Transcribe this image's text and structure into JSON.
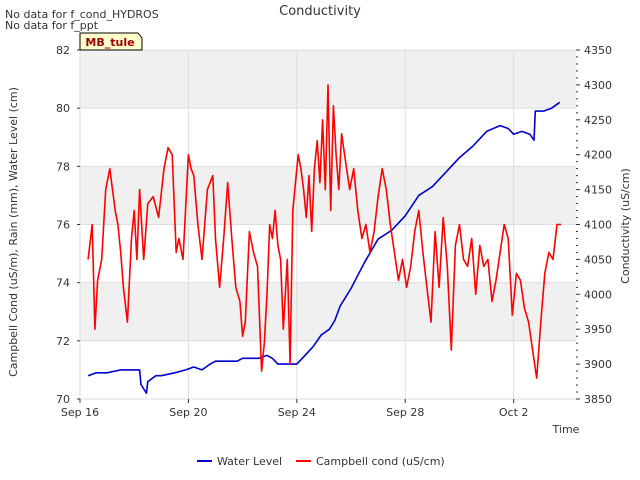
{
  "notes": [
    "No data for f_cond_HYDROS",
    "No data for f_ppt"
  ],
  "site_label": "MB_tule",
  "chart_data": {
    "type": "line",
    "title": "Conductivity",
    "xlabel": "Time",
    "ylabel_left": "Campbell Cond (uS/m), Rain (mm), Water Level (cm)",
    "ylabel_right": "Conductivity (uS/cm)",
    "xlim": [
      0,
      18.3
    ],
    "x_ticks": [
      {
        "x": 0,
        "label": "Sep 16"
      },
      {
        "x": 4,
        "label": "Sep 20"
      },
      {
        "x": 8,
        "label": "Sep 24"
      },
      {
        "x": 12,
        "label": "Sep 28"
      },
      {
        "x": 16,
        "label": "Oct 2"
      }
    ],
    "ylim_left": [
      70,
      82
    ],
    "y_ticks_left": [
      "70",
      "72",
      "74",
      "76",
      "78",
      "80",
      "82"
    ],
    "ylim_right": [
      3850,
      4350
    ],
    "y_ticks_right": [
      "3850",
      "3900",
      "3950",
      "4000",
      "4050",
      "4100",
      "4150",
      "4200",
      "4250",
      "4300",
      "4350"
    ],
    "grid": true,
    "legend": [
      "Water Level",
      "Campbell cond (uS/cm)"
    ],
    "colors": {
      "water_level": "#0000cc",
      "campbell_cond": "#ff0000",
      "band": "#f0f0f0",
      "grid": "#dddddd"
    },
    "series": [
      {
        "name": "Water Level",
        "axis": "left",
        "x": [
          0.3,
          0.6,
          1.0,
          1.5,
          2.0,
          2.2,
          2.25,
          2.45,
          2.5,
          2.8,
          3.0,
          3.5,
          3.9,
          4.2,
          4.5,
          4.8,
          5.0,
          5.5,
          5.8,
          6.0,
          6.3,
          6.6,
          6.9,
          7.1,
          7.3,
          7.5,
          7.8,
          8.0,
          8.3,
          8.6,
          8.9,
          9.2,
          9.4,
          9.6,
          10.0,
          10.5,
          11.0,
          11.5,
          12.0,
          12.5,
          13.0,
          13.5,
          14.0,
          14.5,
          15.0,
          15.5,
          15.8,
          16.0,
          16.3,
          16.6,
          16.75,
          16.8,
          17.1,
          17.4,
          17.7
        ],
        "y": [
          70.8,
          70.9,
          70.9,
          71.0,
          71.0,
          71.0,
          70.5,
          70.2,
          70.6,
          70.8,
          70.8,
          70.9,
          71.0,
          71.1,
          71.0,
          71.2,
          71.3,
          71.3,
          71.3,
          71.4,
          71.4,
          71.4,
          71.5,
          71.4,
          71.2,
          71.2,
          71.2,
          71.2,
          71.5,
          71.8,
          72.2,
          72.4,
          72.7,
          73.2,
          73.8,
          74.7,
          75.5,
          75.8,
          76.3,
          77.0,
          77.3,
          77.8,
          78.3,
          78.7,
          79.2,
          79.4,
          79.3,
          79.1,
          79.2,
          79.1,
          78.9,
          79.9,
          79.9,
          80.0,
          80.2
        ]
      },
      {
        "name": "Campbell cond (uS/cm)",
        "axis": "right",
        "x": [
          0.3,
          0.45,
          0.55,
          0.65,
          0.8,
          0.95,
          1.1,
          1.3,
          1.4,
          1.5,
          1.6,
          1.75,
          1.9,
          2.0,
          2.1,
          2.2,
          2.35,
          2.5,
          2.7,
          2.9,
          3.1,
          3.25,
          3.4,
          3.55,
          3.65,
          3.8,
          4.0,
          4.1,
          4.2,
          4.35,
          4.5,
          4.7,
          4.9,
          5.0,
          5.15,
          5.3,
          5.45,
          5.6,
          5.75,
          5.9,
          6.0,
          6.1,
          6.25,
          6.4,
          6.55,
          6.7,
          6.8,
          6.9,
          7.0,
          7.1,
          7.2,
          7.3,
          7.4,
          7.5,
          7.65,
          7.75,
          7.85,
          7.95,
          8.05,
          8.15,
          8.25,
          8.35,
          8.45,
          8.55,
          8.65,
          8.75,
          8.85,
          8.95,
          9.05,
          9.15,
          9.25,
          9.35,
          9.45,
          9.55,
          9.65,
          9.8,
          9.95,
          10.1,
          10.25,
          10.4,
          10.55,
          10.7,
          10.85,
          11.0,
          11.15,
          11.3,
          11.45,
          11.6,
          11.75,
          11.9,
          12.05,
          12.2,
          12.35,
          12.5,
          12.65,
          12.8,
          12.95,
          13.1,
          13.25,
          13.4,
          13.55,
          13.7,
          13.85,
          14.0,
          14.15,
          14.3,
          14.45,
          14.6,
          14.75,
          14.9,
          15.05,
          15.2,
          15.35,
          15.5,
          15.65,
          15.8,
          15.95,
          16.1,
          16.25,
          16.4,
          16.55,
          16.7,
          16.85,
          17.0,
          17.15,
          17.3,
          17.45,
          17.6,
          17.75
        ],
        "y": [
          4050,
          4100,
          3950,
          4020,
          4050,
          4150,
          4180,
          4120,
          4100,
          4060,
          4010,
          3960,
          4080,
          4120,
          4050,
          4150,
          4050,
          4130,
          4140,
          4110,
          4180,
          4210,
          4200,
          4060,
          4080,
          4050,
          4200,
          4180,
          4170,
          4100,
          4050,
          4150,
          4170,
          4080,
          4010,
          4080,
          4160,
          4080,
          4010,
          3990,
          3940,
          3960,
          4090,
          4060,
          4040,
          3890,
          3930,
          4000,
          4100,
          4080,
          4120,
          4070,
          4050,
          3950,
          4050,
          3900,
          4120,
          4160,
          4200,
          4180,
          4150,
          4110,
          4170,
          4090,
          4180,
          4220,
          4160,
          4250,
          4150,
          4300,
          4120,
          4270,
          4200,
          4150,
          4230,
          4190,
          4150,
          4180,
          4120,
          4080,
          4100,
          4060,
          4090,
          4140,
          4180,
          4150,
          4100,
          4060,
          4020,
          4050,
          4010,
          4040,
          4090,
          4120,
          4060,
          4010,
          3960,
          4090,
          4010,
          4110,
          4040,
          3920,
          4070,
          4100,
          4050,
          4040,
          4080,
          4000,
          4070,
          4040,
          4050,
          3990,
          4020,
          4060,
          4100,
          4080,
          3970,
          4030,
          4020,
          3980,
          3960,
          3920,
          3880,
          3960,
          4030,
          4060,
          4050,
          4100,
          4100
        ]
      }
    ]
  }
}
